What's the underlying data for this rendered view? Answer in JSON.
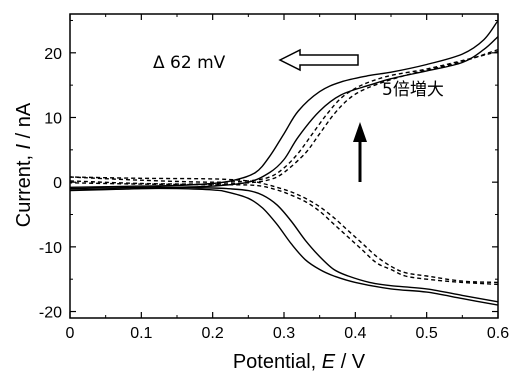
{
  "chart_data": {
    "type": "line",
    "xlabel": "Potential, E / V",
    "ylabel": "Current, I / nA",
    "xlim": [
      0,
      0.6
    ],
    "ylim": [
      -21,
      26
    ],
    "xticks": [
      0,
      0.1,
      0.2,
      0.3,
      0.4,
      0.5,
      0.6
    ],
    "yticks": [
      -20,
      -10,
      0,
      10,
      20
    ],
    "xtick_labels": [
      "0",
      "0.1",
      "0.2",
      "0.3",
      "0.4",
      "0.5",
      "0.6"
    ],
    "ytick_labels": [
      "-20",
      "-10",
      "0",
      "10",
      "20"
    ],
    "annotations": {
      "shift": "Δ 62 mV",
      "increase": "5倍増大"
    },
    "series": [
      {
        "style": "solid",
        "x": [
          0,
          0.1,
          0.15,
          0.2,
          0.23,
          0.26,
          0.28,
          0.3,
          0.32,
          0.35,
          0.38,
          0.42,
          0.45,
          0.5,
          0.55,
          0.58,
          0.6
        ],
        "y": [
          -0.8,
          -0.6,
          -0.5,
          -0.2,
          0.3,
          1.5,
          4,
          7.5,
          11,
          14,
          15.5,
          16.5,
          17,
          18.2,
          19.8,
          22,
          25
        ]
      },
      {
        "style": "solid",
        "x": [
          0,
          0.1,
          0.15,
          0.2,
          0.25,
          0.28,
          0.3,
          0.32,
          0.35,
          0.38,
          0.42,
          0.45,
          0.5,
          0.55,
          0.58,
          0.6
        ],
        "y": [
          -1.2,
          -1.0,
          -0.8,
          -0.6,
          0.0,
          1.5,
          3.5,
          7,
          11,
          13.5,
          15,
          16,
          17.2,
          18.5,
          20.5,
          22.5
        ]
      },
      {
        "style": "solid",
        "x": [
          0.6,
          0.55,
          0.5,
          0.45,
          0.4,
          0.37,
          0.35,
          0.33,
          0.31,
          0.29,
          0.27,
          0.25,
          0.22,
          0.2,
          0.15,
          0.1,
          0
        ],
        "y": [
          -19,
          -18,
          -17,
          -16.5,
          -15.5,
          -14.5,
          -13.5,
          -12,
          -9.5,
          -6.5,
          -4,
          -2.5,
          -1.5,
          -1.2,
          -1.0,
          -1.0,
          -1.3
        ]
      },
      {
        "style": "solid",
        "x": [
          0.6,
          0.55,
          0.5,
          0.45,
          0.42,
          0.39,
          0.37,
          0.35,
          0.33,
          0.31,
          0.29,
          0.27,
          0.25,
          0.22,
          0.2,
          0.15,
          0.1,
          0
        ],
        "y": [
          -18.5,
          -17.5,
          -16.5,
          -16,
          -15.5,
          -14.5,
          -13.5,
          -11.5,
          -9,
          -6,
          -3.5,
          -2,
          -1.3,
          -1.0,
          -0.9,
          -0.8,
          -0.8,
          -1.0
        ]
      },
      {
        "style": "dashed",
        "x": [
          0,
          0.1,
          0.2,
          0.25,
          0.28,
          0.3,
          0.32,
          0.34,
          0.36,
          0.38,
          0.4,
          0.42,
          0.45,
          0.5,
          0.55,
          0.6
        ],
        "y": [
          0.8,
          0.3,
          0,
          0.2,
          0.8,
          2.2,
          4.5,
          7.5,
          10.5,
          13,
          14.5,
          15.5,
          16.5,
          17.5,
          18.8,
          20.2
        ]
      },
      {
        "style": "dashed",
        "x": [
          0,
          0.1,
          0.2,
          0.25,
          0.28,
          0.3,
          0.33,
          0.35,
          0.37,
          0.39,
          0.41,
          0.44,
          0.48,
          0.52,
          0.56,
          0.6
        ],
        "y": [
          0.2,
          -0.2,
          -0.3,
          -0.1,
          0.4,
          1.5,
          4.5,
          7.5,
          10.5,
          12.8,
          14.2,
          15.5,
          16.8,
          17.8,
          19,
          20.5
        ]
      },
      {
        "style": "dashed",
        "x": [
          0.6,
          0.55,
          0.5,
          0.47,
          0.45,
          0.43,
          0.41,
          0.39,
          0.37,
          0.35,
          0.33,
          0.31,
          0.29,
          0.27,
          0.25,
          0.2,
          0.1,
          0
        ],
        "y": [
          -15.5,
          -15.3,
          -14.5,
          -14,
          -13,
          -11.5,
          -9.5,
          -7.5,
          -5.5,
          -3.8,
          -2.5,
          -1.5,
          -0.8,
          -0.2,
          0.2,
          0.5,
          0.6,
          0.8
        ]
      },
      {
        "style": "dashed",
        "x": [
          0.6,
          0.55,
          0.5,
          0.47,
          0.45,
          0.43,
          0.41,
          0.39,
          0.37,
          0.35,
          0.33,
          0.31,
          0.29,
          0.26,
          0.2,
          0.1,
          0
        ],
        "y": [
          -15.8,
          -15.5,
          -15,
          -14.5,
          -13.5,
          -12.5,
          -10.5,
          -8.5,
          -6.5,
          -4.5,
          -3,
          -2,
          -1.2,
          -0.5,
          -0.4,
          -0.3,
          -0.1
        ]
      }
    ]
  }
}
